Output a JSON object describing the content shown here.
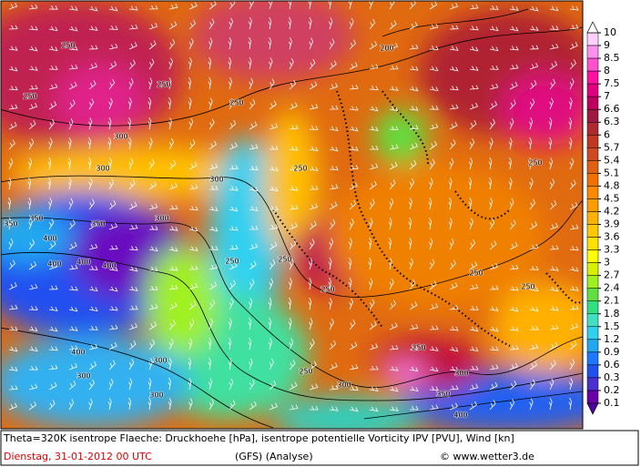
{
  "map": {
    "contour_labels": [
      "250",
      "250",
      "250",
      "300",
      "300",
      "300",
      "200",
      "250",
      "250",
      "250",
      "350",
      "350",
      "350",
      "300",
      "400",
      "400",
      "400",
      "400",
      "250",
      "250",
      "250",
      "250",
      "250",
      "250",
      "400",
      "300",
      "300",
      "300",
      "250",
      "300",
      "300",
      "350",
      "400"
    ]
  },
  "colorbar": {
    "levels": [
      10,
      9,
      8.5,
      8,
      7.5,
      7,
      6.6,
      6.3,
      6,
      5.7,
      5.4,
      5.1,
      4.8,
      4.5,
      4.2,
      3.9,
      3.6,
      3.3,
      3,
      2.7,
      2.4,
      2.1,
      1.8,
      1.5,
      1.2,
      0.9,
      0.6,
      0.3,
      0.2,
      0.1
    ],
    "colors": [
      "#ffd0ff",
      "#ff90f0",
      "#ff50d0",
      "#ff10a0",
      "#e00080",
      "#c00060",
      "#a01840",
      "#b02830",
      "#c03820",
      "#d04820",
      "#e06010",
      "#f07000",
      "#ff8800",
      "#ff9a00",
      "#ffb000",
      "#ffc800",
      "#ffe000",
      "#ffff00",
      "#d8f000",
      "#a0f020",
      "#60e040",
      "#30e080",
      "#40e0c0",
      "#30d0f0",
      "#22a8f0",
      "#1e78ff",
      "#2050f0",
      "#4b2fd0",
      "#6a00a8"
    ],
    "over_color": "#ffffff",
    "under_color": "#5000a0"
  },
  "caption": {
    "line1": "Theta=320K isentrope Flaeche: Druckhoehe [hPa], isentrope potentielle Vorticity IPV [PVU], Wind [kn]",
    "date": "Dienstag, 31-01-2012   00 UTC",
    "model": "(GFS)   (Analyse)",
    "source": "© www.wetter3.de"
  }
}
